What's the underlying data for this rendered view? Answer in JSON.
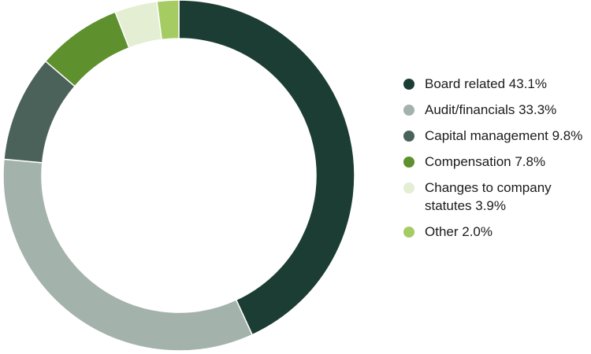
{
  "chart_data": {
    "type": "pie",
    "style": "donut",
    "title": "",
    "categories": [
      "Board related",
      "Audit/financials",
      "Capital management",
      "Compensation",
      "Changes to company statutes",
      "Other"
    ],
    "values": [
      43.1,
      33.3,
      9.8,
      7.8,
      3.9,
      2.0
    ],
    "unit": "%",
    "colors": [
      "#1c3d33",
      "#a3b2ab",
      "#4a6259",
      "#5e902d",
      "#e3eed3",
      "#a5cc63"
    ],
    "legend_position": "right",
    "legend": [
      {
        "label": "Board related 43.1%"
      },
      {
        "label": "Audit/financials 33.3%"
      },
      {
        "label": "Capital management 9.8%"
      },
      {
        "label": "Compensation 7.8%"
      },
      {
        "label": "Changes to company statutes 3.9%"
      },
      {
        "label": "Other 2.0%"
      }
    ]
  }
}
